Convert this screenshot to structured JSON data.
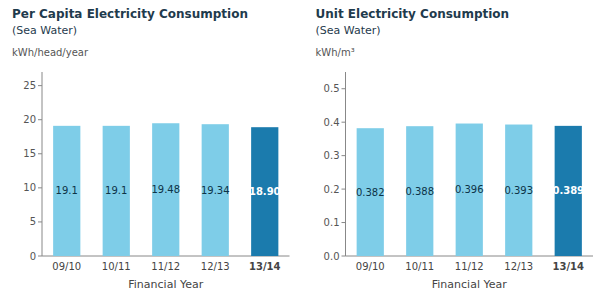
{
  "chart_data": [
    {
      "type": "bar",
      "title": "Per Capita Electricity Consumption",
      "subtitle": "(Sea Water)",
      "ylabel": "kWh/head/year",
      "xlabel": "Financial Year",
      "categories": [
        "09/10",
        "10/11",
        "11/12",
        "12/13",
        "13/14"
      ],
      "values": [
        19.1,
        19.1,
        19.48,
        19.34,
        18.9
      ],
      "value_labels": [
        "19.1",
        "19.1",
        "19.48",
        "19.34",
        "18.90"
      ],
      "data_labels": true,
      "colors": [
        "#7ECDE8",
        "#7ECDE8",
        "#7ECDE8",
        "#7ECDE8",
        "#1B7BAD"
      ],
      "ylim": [
        0,
        27
      ],
      "yticks": [
        0,
        5,
        10,
        15,
        20,
        25
      ],
      "grid": false
    },
    {
      "type": "bar",
      "title": "Unit Electricity Consumption",
      "subtitle": "(Sea Water)",
      "ylabel": "kWh/m³",
      "xlabel": "Financial Year",
      "categories": [
        "09/10",
        "10/11",
        "11/12",
        "12/13",
        "13/14"
      ],
      "values": [
        0.382,
        0.388,
        0.396,
        0.393,
        0.389
      ],
      "value_labels": [
        "0.382",
        "0.388",
        "0.396",
        "0.393",
        "0.389"
      ],
      "data_labels": true,
      "colors": [
        "#7ECDE8",
        "#7ECDE8",
        "#7ECDE8",
        "#7ECDE8",
        "#1B7BAD"
      ],
      "ylim": [
        0,
        0.55
      ],
      "yticks": [
        {
          "value": 0,
          "label": "0.0"
        },
        0.1,
        0.2,
        0.3,
        0.4,
        0.5
      ],
      "grid": false
    }
  ]
}
